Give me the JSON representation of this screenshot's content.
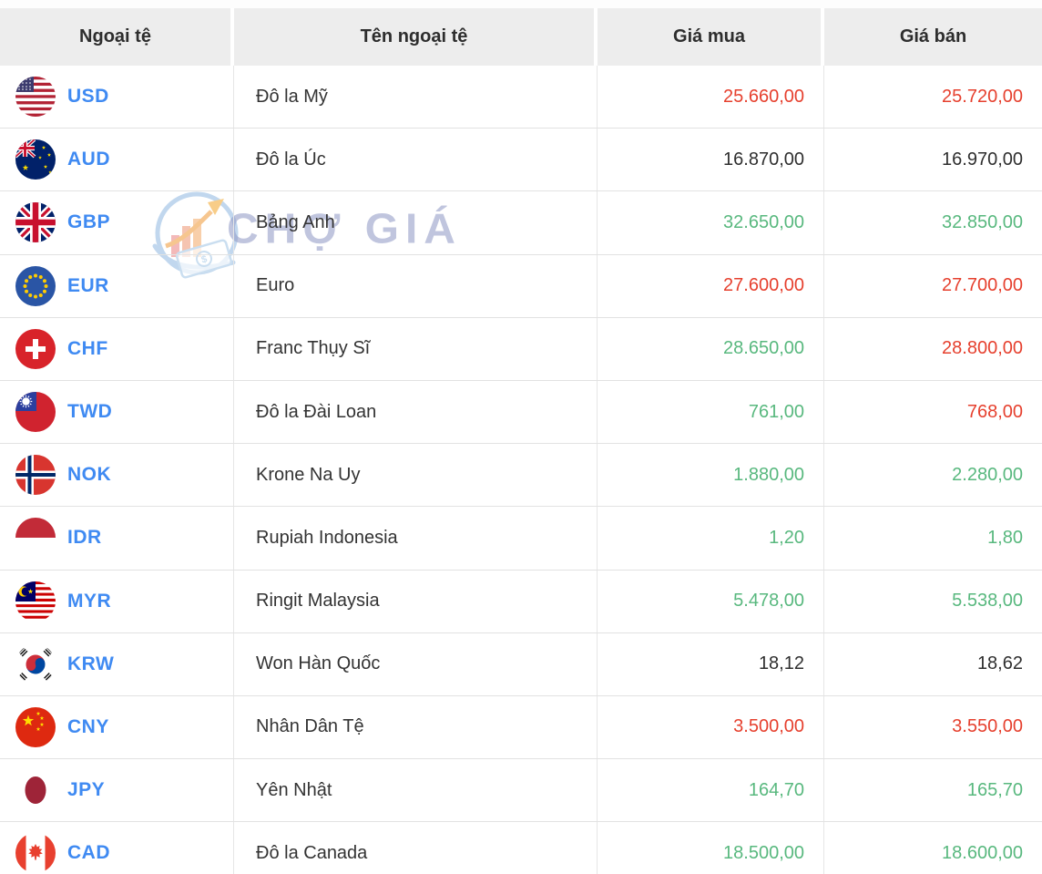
{
  "table": {
    "headers": [
      "Ngoại tệ",
      "Tên ngoại tệ",
      "Giá mua",
      "Giá bán"
    ],
    "rows": [
      {
        "code": "USD",
        "flag_icon": "usd-flag-icon",
        "name": "Đô la Mỹ",
        "buy": "25.660,00",
        "sell": "25.720,00",
        "buy_state": "red",
        "sell_state": "red"
      },
      {
        "code": "AUD",
        "flag_icon": "aud-flag-icon",
        "name": "Đô la Úc",
        "buy": "16.870,00",
        "sell": "16.970,00",
        "buy_state": "black",
        "sell_state": "black"
      },
      {
        "code": "GBP",
        "flag_icon": "gbp-flag-icon",
        "name": "Bảng Anh",
        "buy": "32.650,00",
        "sell": "32.850,00",
        "buy_state": "green",
        "sell_state": "green"
      },
      {
        "code": "EUR",
        "flag_icon": "eur-flag-icon",
        "name": "Euro",
        "buy": "27.600,00",
        "sell": "27.700,00",
        "buy_state": "red",
        "sell_state": "red"
      },
      {
        "code": "CHF",
        "flag_icon": "chf-flag-icon",
        "name": "Franc Thụy Sĩ",
        "buy": "28.650,00",
        "sell": "28.800,00",
        "buy_state": "green",
        "sell_state": "red"
      },
      {
        "code": "TWD",
        "flag_icon": "twd-flag-icon",
        "name": "Đô la Đài Loan",
        "buy": "761,00",
        "sell": "768,00",
        "buy_state": "green",
        "sell_state": "red"
      },
      {
        "code": "NOK",
        "flag_icon": "nok-flag-icon",
        "name": "Krone Na Uy",
        "buy": "1.880,00",
        "sell": "2.280,00",
        "buy_state": "green",
        "sell_state": "green"
      },
      {
        "code": "IDR",
        "flag_icon": "idr-flag-icon",
        "name": "Rupiah Indonesia",
        "buy": "1,20",
        "sell": "1,80",
        "buy_state": "green",
        "sell_state": "green"
      },
      {
        "code": "MYR",
        "flag_icon": "myr-flag-icon",
        "name": "Ringit Malaysia",
        "buy": "5.478,00",
        "sell": "5.538,00",
        "buy_state": "green",
        "sell_state": "green"
      },
      {
        "code": "KRW",
        "flag_icon": "krw-flag-icon",
        "name": "Won Hàn Quốc",
        "buy": "18,12",
        "sell": "18,62",
        "buy_state": "black",
        "sell_state": "black"
      },
      {
        "code": "CNY",
        "flag_icon": "cny-flag-icon",
        "name": "Nhân Dân Tệ",
        "buy": "3.500,00",
        "sell": "3.550,00",
        "buy_state": "red",
        "sell_state": "red"
      },
      {
        "code": "JPY",
        "flag_icon": "jpy-flag-icon",
        "name": "Yên Nhật",
        "buy": "164,70",
        "sell": "165,70",
        "buy_state": "green",
        "sell_state": "green"
      },
      {
        "code": "CAD",
        "flag_icon": "cad-flag-icon",
        "name": "Đô la Canada",
        "buy": "18.500,00",
        "sell": "18.600,00",
        "buy_state": "green",
        "sell_state": "green"
      }
    ]
  },
  "watermark": {
    "text": "CHỢ GIÁ"
  },
  "colors": {
    "green": "#58b87e",
    "red": "#e6402e",
    "black": "#2f2f2f",
    "code_blue": "#3f8af2"
  }
}
